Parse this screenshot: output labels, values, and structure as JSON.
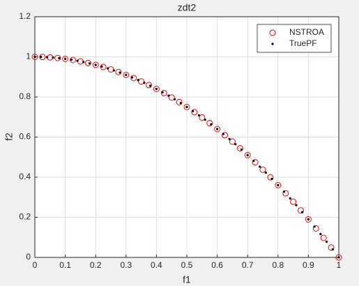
{
  "chart_data": {
    "type": "scatter",
    "title": "zdt2",
    "xlabel": "f1",
    "ylabel": "f2",
    "xlim": [
      0,
      1
    ],
    "ylim": [
      0,
      1.2
    ],
    "xticks": [
      0,
      0.1,
      0.2,
      0.3,
      0.4,
      0.5,
      0.6,
      0.7,
      0.8,
      0.9,
      1
    ],
    "yticks": [
      0,
      0.2,
      0.4,
      0.6,
      0.8,
      1,
      1.2
    ],
    "grid": true,
    "legend": "northeast",
    "series": [
      {
        "name": "NSTROA",
        "color": "#ff0000",
        "marker": "circle",
        "x": [
          0,
          0.025,
          0.05,
          0.075,
          0.1,
          0.125,
          0.15,
          0.175,
          0.2,
          0.225,
          0.25,
          0.275,
          0.3,
          0.325,
          0.35,
          0.375,
          0.4,
          0.425,
          0.45,
          0.475,
          0.5,
          0.525,
          0.55,
          0.575,
          0.6,
          0.625,
          0.65,
          0.675,
          0.7,
          0.725,
          0.75,
          0.775,
          0.8,
          0.825,
          0.85,
          0.875,
          0.9,
          0.925,
          0.95,
          0.975,
          1
        ],
        "values": [
          1,
          0.9994,
          0.9975,
          0.9944,
          0.99,
          0.9844,
          0.9775,
          0.9694,
          0.96,
          0.9494,
          0.9375,
          0.9244,
          0.91,
          0.8944,
          0.8775,
          0.8594,
          0.84,
          0.8194,
          0.7975,
          0.7744,
          0.75,
          0.7244,
          0.6975,
          0.6694,
          0.64,
          0.6094,
          0.5775,
          0.5444,
          0.51,
          0.4744,
          0.4375,
          0.3994,
          0.36,
          0.3194,
          0.2775,
          0.2344,
          0.19,
          0.1444,
          0.0975,
          0.0494,
          0
        ]
      },
      {
        "name": "TruePF",
        "color": "#000000",
        "marker": "dot",
        "x": [
          0,
          0.02,
          0.04,
          0.06,
          0.08,
          0.1,
          0.12,
          0.14,
          0.16,
          0.18,
          0.2,
          0.22,
          0.24,
          0.26,
          0.28,
          0.3,
          0.32,
          0.34,
          0.36,
          0.38,
          0.4,
          0.42,
          0.44,
          0.46,
          0.48,
          0.5,
          0.52,
          0.54,
          0.56,
          0.58,
          0.6,
          0.62,
          0.64,
          0.66,
          0.68,
          0.7,
          0.72,
          0.74,
          0.76,
          0.78,
          0.8,
          0.82,
          0.84,
          0.86,
          0.88,
          0.9,
          0.92,
          0.94,
          0.96,
          0.98,
          1
        ],
        "values": [
          1,
          0.9996,
          0.9984,
          0.9964,
          0.9936,
          0.99,
          0.9856,
          0.9804,
          0.9744,
          0.9676,
          0.96,
          0.9516,
          0.9424,
          0.9324,
          0.9216,
          0.91,
          0.8976,
          0.8844,
          0.8704,
          0.8556,
          0.84,
          0.8236,
          0.8064,
          0.7884,
          0.7696,
          0.75,
          0.7296,
          0.7084,
          0.6864,
          0.6636,
          0.64,
          0.6156,
          0.5904,
          0.5644,
          0.5376,
          0.51,
          0.4816,
          0.4524,
          0.4224,
          0.3916,
          0.36,
          0.3276,
          0.2944,
          0.2604,
          0.2256,
          0.19,
          0.1536,
          0.1164,
          0.0784,
          0.0396,
          0
        ]
      }
    ]
  }
}
